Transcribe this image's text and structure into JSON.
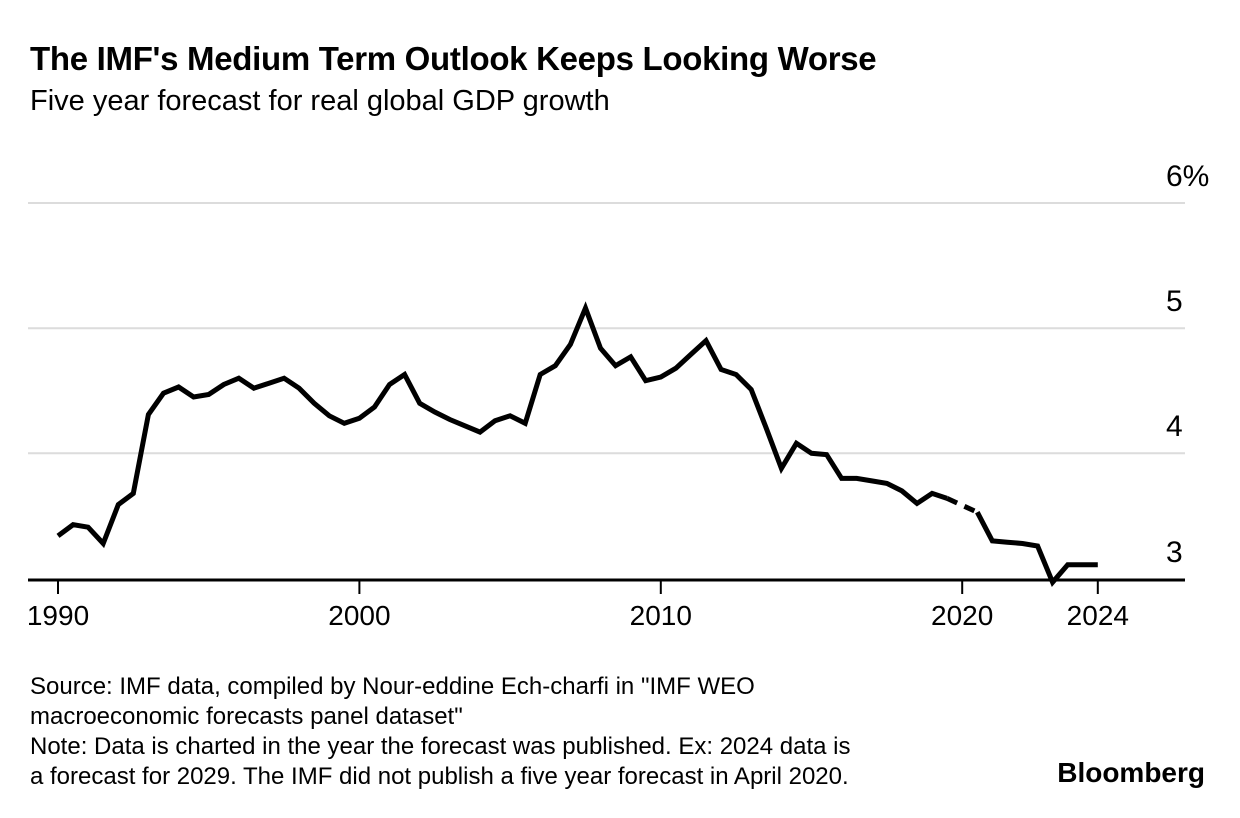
{
  "header": {
    "title": "The IMF's Medium Term Outlook Keeps Looking Worse",
    "subtitle": "Five year forecast for real global GDP growth"
  },
  "footer": {
    "source_lines": [
      "Source: IMF data, compiled by Nour-eddine Ech-charfi in \"IMF WEO",
      "macroeconomic forecasts panel dataset\""
    ],
    "note_lines": [
      "Note: Data is charted in the year the forecast was published. Ex: 2024 data is",
      "a forecast for 2029. The IMF did not publish a five year forecast in April 2020."
    ],
    "brand": "Bloomberg"
  },
  "chart_data": {
    "type": "line",
    "title": "The IMF's Medium Term Outlook Keeps Looking Worse",
    "subtitle": "Five year forecast for real global GDP growth",
    "unit": "%",
    "frequency": "semiannual (April and October WEO editions)",
    "line_color": "#000000",
    "grid_color": "#dcdcdc",
    "axis_color": "#000000",
    "legend": "none",
    "grid": "horizontal only",
    "x_axis": {
      "tick_years": [
        1990,
        2000,
        2010,
        2020,
        2024
      ],
      "labels": [
        "1990",
        "2000",
        "2010",
        "2020",
        "2024"
      ]
    },
    "y_axis": {
      "ticks": [
        {
          "value": 6,
          "label": "6%"
        },
        {
          "value": 5,
          "label": "5"
        },
        {
          "value": 4,
          "label": "4"
        },
        {
          "value": 3,
          "label": "3"
        }
      ],
      "axis_at_value": 3,
      "min": 2.9,
      "max": 6.2
    },
    "gap": {
      "at_x": 2020.25,
      "style": "dashed",
      "reason": "no April 2020 forecast published"
    },
    "x": [
      1990.25,
      1990.75,
      1991.25,
      1991.75,
      1992.25,
      1992.75,
      1993.25,
      1993.75,
      1994.25,
      1994.75,
      1995.25,
      1995.75,
      1996.25,
      1996.75,
      1997.25,
      1997.75,
      1998.25,
      1998.75,
      1999.25,
      1999.75,
      2000.25,
      2000.75,
      2001.25,
      2001.75,
      2002.25,
      2002.75,
      2003.25,
      2003.75,
      2004.25,
      2004.75,
      2005.25,
      2005.75,
      2006.25,
      2006.75,
      2007.25,
      2007.75,
      2008.25,
      2008.75,
      2009.25,
      2009.75,
      2010.25,
      2010.75,
      2011.25,
      2011.75,
      2012.25,
      2012.75,
      2013.25,
      2013.75,
      2014.25,
      2014.75,
      2015.25,
      2015.75,
      2016.25,
      2016.75,
      2017.25,
      2017.75,
      2018.25,
      2018.75,
      2019.25,
      2019.75,
      2020.25,
      2020.75,
      2021.25,
      2021.75,
      2022.25,
      2022.75,
      2023.25,
      2023.75,
      2024.25,
      2024.75
    ],
    "values": [
      3.34,
      3.43,
      3.41,
      3.28,
      3.59,
      3.68,
      4.31,
      4.48,
      4.53,
      4.45,
      4.47,
      4.55,
      4.6,
      4.52,
      4.56,
      4.6,
      4.52,
      4.4,
      4.3,
      4.24,
      4.28,
      4.37,
      4.55,
      4.63,
      4.4,
      4.33,
      4.27,
      4.22,
      4.17,
      4.26,
      4.3,
      4.24,
      4.63,
      4.7,
      4.87,
      5.16,
      4.84,
      4.7,
      4.77,
      4.58,
      4.61,
      4.68,
      4.79,
      4.9,
      4.67,
      4.63,
      4.51,
      4.2,
      3.88,
      4.08,
      4.0,
      3.99,
      3.8,
      3.8,
      3.78,
      3.76,
      3.7,
      3.6,
      3.68,
      3.64,
      null,
      3.53,
      3.3,
      3.29,
      3.28,
      3.26,
      2.97,
      3.11,
      3.11,
      3.11
    ]
  }
}
